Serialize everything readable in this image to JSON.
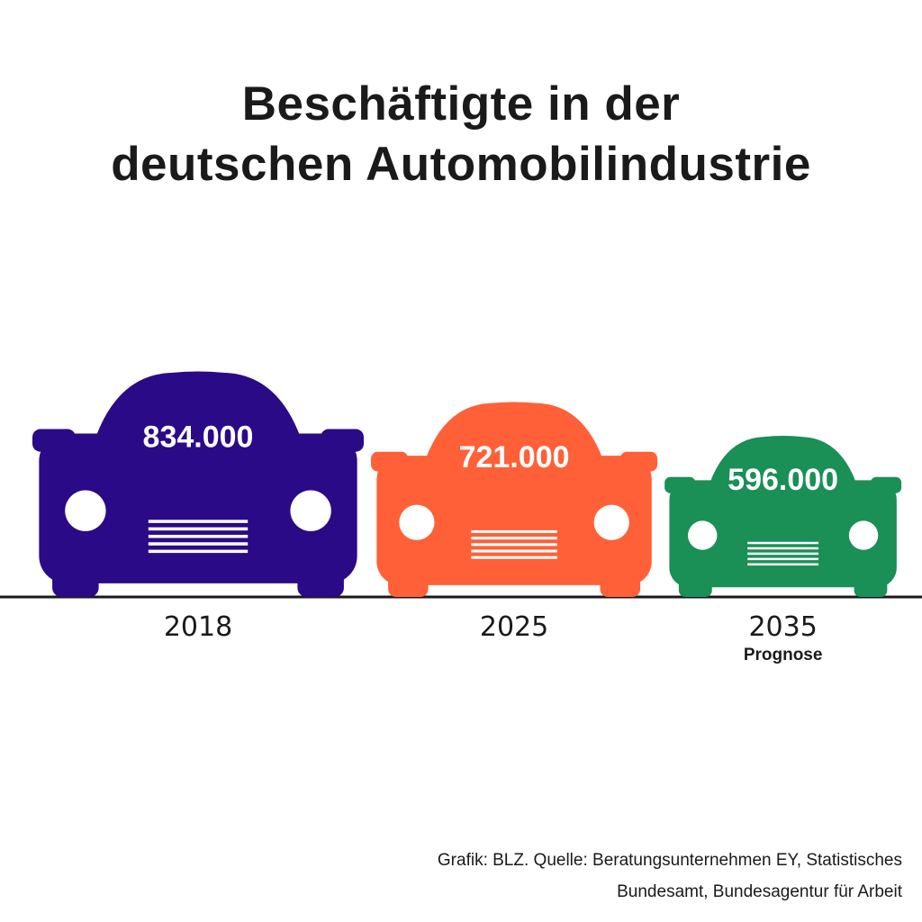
{
  "title_lines": [
    "Beschäftigte in der",
    "deutschen Automobilindustrie"
  ],
  "chart_data": {
    "type": "bar",
    "categories": [
      "2018",
      "2025",
      "2035"
    ],
    "values": [
      834000,
      721000,
      596000
    ],
    "value_labels": [
      "834.000",
      "721.000",
      "596.000"
    ],
    "notes": [
      "",
      "",
      "Prognose"
    ],
    "colors": [
      "#2a0a87",
      "#ff6038",
      "#1a8f56"
    ],
    "title": "Beschäftigte in der deutschen Automobilindustrie",
    "xlabel": "",
    "ylabel": "",
    "grid": false
  },
  "source_lines": [
    "Grafik: BLZ. Quelle: Beratungsunternehmen EY, Statistisches",
    "Bundesamt, Bundesagentur für Arbeit"
  ]
}
